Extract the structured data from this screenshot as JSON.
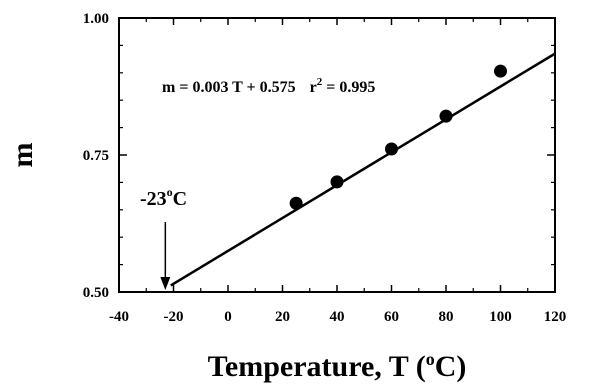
{
  "chart_data": {
    "type": "scatter",
    "xlabel": "Temperature, T (",
    "xlabel_sup": "o",
    "xlabel_end": "C)",
    "ylabel": "m",
    "xlim": [
      -40,
      120
    ],
    "ylim": [
      0.5,
      1.0
    ],
    "x_ticks": [
      -40,
      -20,
      0,
      20,
      40,
      60,
      80,
      100,
      120
    ],
    "y_ticks": [
      0.5,
      0.75,
      1.0
    ],
    "x_tick_labels": [
      "-40",
      "-20",
      "0",
      "20",
      "40",
      "60",
      "80",
      "100",
      "120"
    ],
    "y_tick_labels": [
      "0.50",
      "0.75",
      "1.00"
    ],
    "points": [
      {
        "x": 25,
        "y": 0.662
      },
      {
        "x": 40,
        "y": 0.701
      },
      {
        "x": 60,
        "y": 0.761
      },
      {
        "x": 80,
        "y": 0.821
      },
      {
        "x": 100,
        "y": 0.903
      }
    ],
    "fit_line": {
      "slope": 0.003,
      "intercept": 0.575,
      "x_start": -21,
      "x_end": 120
    },
    "equation": {
      "m_part": "m = 0.003 T + 0.575",
      "r_part": "r",
      "r_sup": "2",
      "r_value": " = 0.995"
    },
    "annotation": {
      "label_main": "-23",
      "label_sup": "o",
      "label_end": "C",
      "x": -23
    },
    "grid": false,
    "legend": "none"
  }
}
